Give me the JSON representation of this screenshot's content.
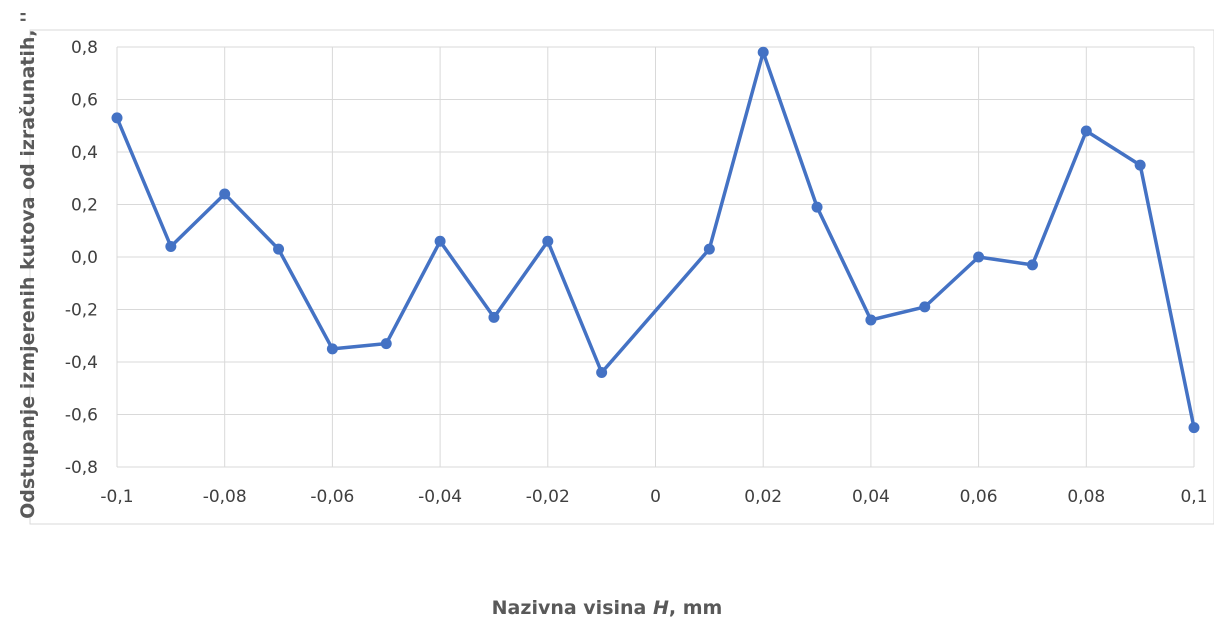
{
  "chart_data": {
    "type": "line",
    "title": "",
    "xlabel": {
      "prefix": "Nazivna visina ",
      "italic": "H",
      "suffix": ", mm"
    },
    "ylabel": "Odstupanje izmjerenih kutova od izračunatih, ''",
    "xlim": [
      -0.1,
      0.1
    ],
    "ylim": [
      -0.8,
      0.8
    ],
    "grid": true,
    "x_ticks": [
      -0.1,
      -0.08,
      -0.06,
      -0.04,
      -0.02,
      0,
      0.02,
      0.04,
      0.06,
      0.08,
      0.1
    ],
    "x_tick_labels": [
      "-0,1",
      "-0,08",
      "-0,06",
      "-0,04",
      "-0,02",
      "0",
      "0,02",
      "0,04",
      "0,06",
      "0,08",
      "0,1"
    ],
    "y_ticks": [
      -0.8,
      -0.6,
      -0.4,
      -0.2,
      0,
      0.2,
      0.4,
      0.6,
      0.8
    ],
    "y_tick_labels": [
      "-0,8",
      "-0,6",
      "-0,4",
      "-0,2",
      "0,0",
      "0,2",
      "0,4",
      "0,6",
      "0,8"
    ],
    "series": [
      {
        "color": "#4472C4",
        "x": [
          -0.1,
          -0.09,
          -0.08,
          -0.07,
          -0.06,
          -0.05,
          -0.04,
          -0.03,
          -0.02,
          -0.01,
          0.01,
          0.02,
          0.03,
          0.04,
          0.05,
          0.06,
          0.07,
          0.08,
          0.09,
          0.1
        ],
        "y": [
          0.53,
          0.04,
          0.24,
          0.03,
          -0.35,
          -0.33,
          0.06,
          -0.23,
          0.06,
          -0.44,
          0.03,
          0.78,
          0.19,
          -0.24,
          -0.19,
          0.0,
          -0.03,
          0.48,
          0.35,
          -0.65
        ]
      }
    ]
  }
}
